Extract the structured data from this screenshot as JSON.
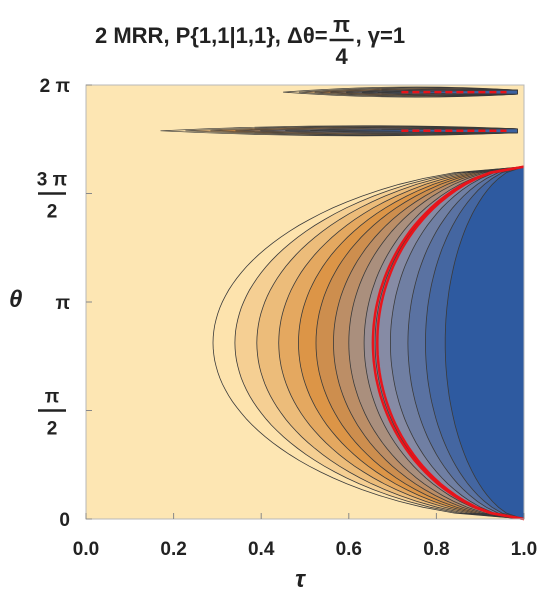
{
  "chart_data": {
    "type": "contour",
    "title": {
      "main": "2 MRR, P{1,1|1,1}, Δθ=",
      "frac_num": "π",
      "frac_den": "4",
      "tail": ", γ=1"
    },
    "xlabel": "τ",
    "ylabel": "θ",
    "xlim": [
      0,
      1
    ],
    "ylim": [
      0,
      6.2832
    ],
    "x_ticks": [
      {
        "value": 0.0,
        "label": "0.0"
      },
      {
        "value": 0.2,
        "label": "0.2"
      },
      {
        "value": 0.4,
        "label": "0.4"
      },
      {
        "value": 0.6,
        "label": "0.6"
      },
      {
        "value": 0.8,
        "label": "0.8"
      },
      {
        "value": 1.0,
        "label": "1.0"
      }
    ],
    "y_ticks": [
      {
        "value": 0,
        "label": "0"
      },
      {
        "value": 1.5708,
        "num": "π",
        "den": "2"
      },
      {
        "value": 3.1416,
        "label": "π"
      },
      {
        "value": 4.7124,
        "num": "3 π",
        "den": "2"
      },
      {
        "value": 6.2832,
        "label": "2 π"
      }
    ],
    "colors": {
      "background": "#fde6b3",
      "low": "#fde3ad",
      "mid": "#d98e3e",
      "mid2": "#8d8fa5",
      "high": "#2e5aa0",
      "contour_line": "#3a3a3a",
      "highlight": "#e8141b"
    },
    "contour_levels": [
      0.1,
      0.17,
      0.24,
      0.31,
      0.38,
      0.45,
      0.52,
      0.58,
      0.64,
      0.7,
      0.76,
      0.82,
      0.88,
      0.94
    ],
    "main_lobe": {
      "theta_range": [
        0.0,
        5.1
      ],
      "outer_boundary_tau": 0.29,
      "level_tau_at_center": [
        0.29,
        0.34,
        0.39,
        0.44,
        0.485,
        0.525,
        0.565,
        0.6,
        0.635,
        0.66,
        0.695,
        0.735,
        0.775,
        0.82
      ],
      "highlight_tau_at_center": [
        0.655,
        0.665
      ]
    },
    "upper_lobes": [
      {
        "theta": 5.62,
        "tau_start": 0.17
      },
      {
        "theta": 6.18,
        "tau_start": 0.45
      }
    ]
  }
}
